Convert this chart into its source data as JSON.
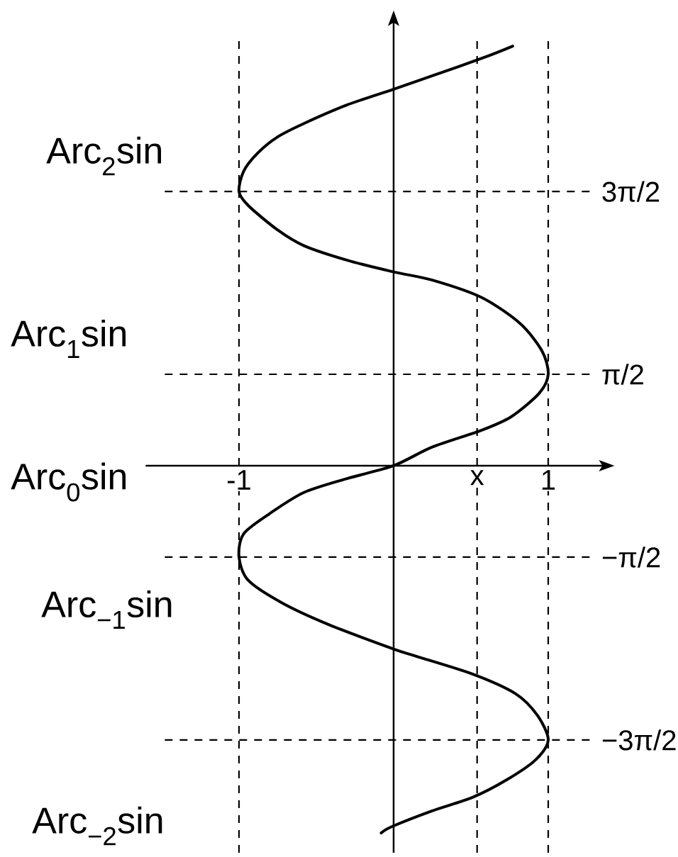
{
  "chart_data": {
    "type": "line",
    "color": "#000000",
    "x": [
      0.77,
      0.59,
      0.25,
      0,
      -0.3,
      -0.58,
      -0.75,
      -0.88,
      -0.97,
      -1,
      -0.94,
      -0.75,
      -0.58,
      -0.3,
      0,
      0.25,
      0.57,
      0.82,
      0.96,
      1,
      0.94,
      0.76,
      0.57,
      0.25,
      0,
      -0.3,
      -0.58,
      -0.8,
      -0.97,
      -1,
      -0.94,
      -0.72,
      -0.42,
      0,
      0.14,
      0.51,
      0.79,
      0.93,
      1,
      0.92,
      0.73,
      0.51,
      0.25,
      -0.01,
      -0.08
    ],
    "values": [
      7.21,
      7.02,
      6.7,
      6.47,
      6.2,
      5.88,
      5.65,
      5.37,
      5.06,
      4.71,
      4.47,
      4.05,
      3.78,
      3.53,
      3.33,
      3.19,
      2.89,
      2.44,
      1.97,
      1.57,
      1.24,
      0.84,
      0.61,
      0.32,
      0,
      -0.22,
      -0.46,
      -0.82,
      -1.17,
      -1.57,
      -1.97,
      -2.36,
      -2.73,
      -3.15,
      -3.27,
      -3.58,
      -3.92,
      -4.29,
      -4.71,
      -5.05,
      -5.4,
      -5.7,
      -5.93,
      -6.2,
      -6.31
    ],
    "xlim": [
      -1.48,
      1.3
    ],
    "ylim": [
      -6.65,
      7.3
    ],
    "xticks": [
      -1,
      {
        "value": 0.54,
        "label": "x"
      },
      1
    ],
    "yticks": [
      {
        "value": -4.712,
        "label": "−3π/2"
      },
      {
        "value": -1.571,
        "label": "−π/2"
      },
      {
        "value": 1.571,
        "label": "π/2"
      },
      {
        "value": 4.712,
        "label": "3π/2"
      }
    ],
    "grid": true,
    "annotations": [
      "Arc$_{2}$sin",
      "Arc$_{1}$sin",
      "Arc$_{0}$sin",
      "Arc$_{−1}$sin",
      "Arc$_{−2}$sin"
    ]
  }
}
